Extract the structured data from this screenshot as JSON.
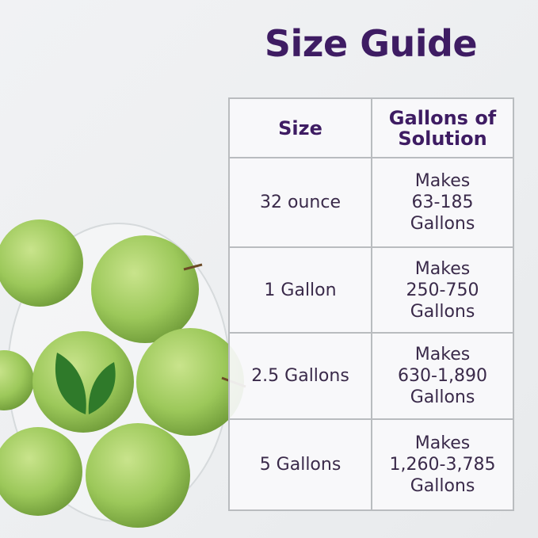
{
  "title": "Size Guide",
  "table": {
    "headers": [
      "Size",
      "Gallons of Solution"
    ],
    "rows": [
      {
        "size": "32 ounce",
        "line1": "Makes",
        "line2": "63-185",
        "line3": "Gallons"
      },
      {
        "size": "1 Gallon",
        "line1": "Makes",
        "line2": "250-750",
        "line3": "Gallons"
      },
      {
        "size": "2.5 Gallons",
        "line1": "Makes",
        "line2": "630-1,890",
        "line3": "Gallons"
      },
      {
        "size": "5 Gallons",
        "line1": "Makes",
        "line2": "1,260-3,785",
        "line3": "Gallons"
      }
    ]
  },
  "colors": {
    "title": "#3e1c63",
    "apple": "#9cc85a",
    "border": "#b9bcbf"
  },
  "image": "bowl-of-green-apples-with-leaf-logo"
}
